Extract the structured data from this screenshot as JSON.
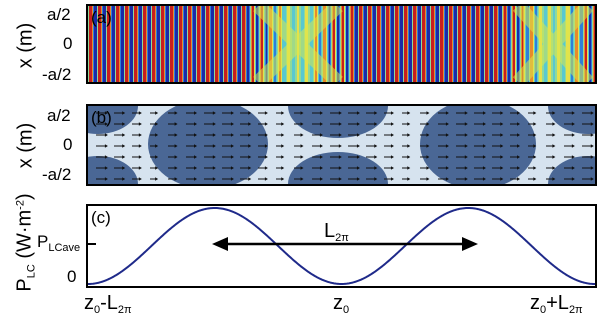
{
  "panels": {
    "a": {
      "tag": "(a)",
      "ylabel": "x (m)",
      "yticks": [
        "a/2",
        "0",
        "-a/2"
      ]
    },
    "b": {
      "tag": "(b)",
      "ylabel": "x (m)",
      "yticks": [
        "a/2",
        "0",
        "-a/2"
      ]
    },
    "c": {
      "tag": "(c)",
      "ylabel_main": "P",
      "ylabel_sub": "LC",
      "ylabel_unit_a": " (W·m",
      "ylabel_unit_sup": "-2",
      "ylabel_unit_b": ")",
      "ytick_mid_main": "P",
      "ytick_mid_sub": "LCave",
      "ytick_zero": "0",
      "arrow_label_main": "L",
      "arrow_label_sub": "2π",
      "xticks": {
        "left_a": "z",
        "left_a_sub": "0",
        "left_b": "-L",
        "left_b_sub": "2π",
        "center": "z",
        "center_sub": "0",
        "right_a": "z",
        "right_a_sub": "0",
        "right_b": "+L",
        "right_b_sub": "2π"
      }
    }
  },
  "chart_data": {
    "type": "line",
    "x_ticks": [
      "z0-L2π",
      "z0",
      "z0+L2π"
    ],
    "y_ticks": [
      "0",
      "PLCave"
    ],
    "series": [
      {
        "values_description_free": true,
        "color": "#1f2a8a"
      }
    ],
    "curve": "sinusoid, period L2π, minima at z0-L2π, z0 and z0+L2π, maxima between them"
  }
}
